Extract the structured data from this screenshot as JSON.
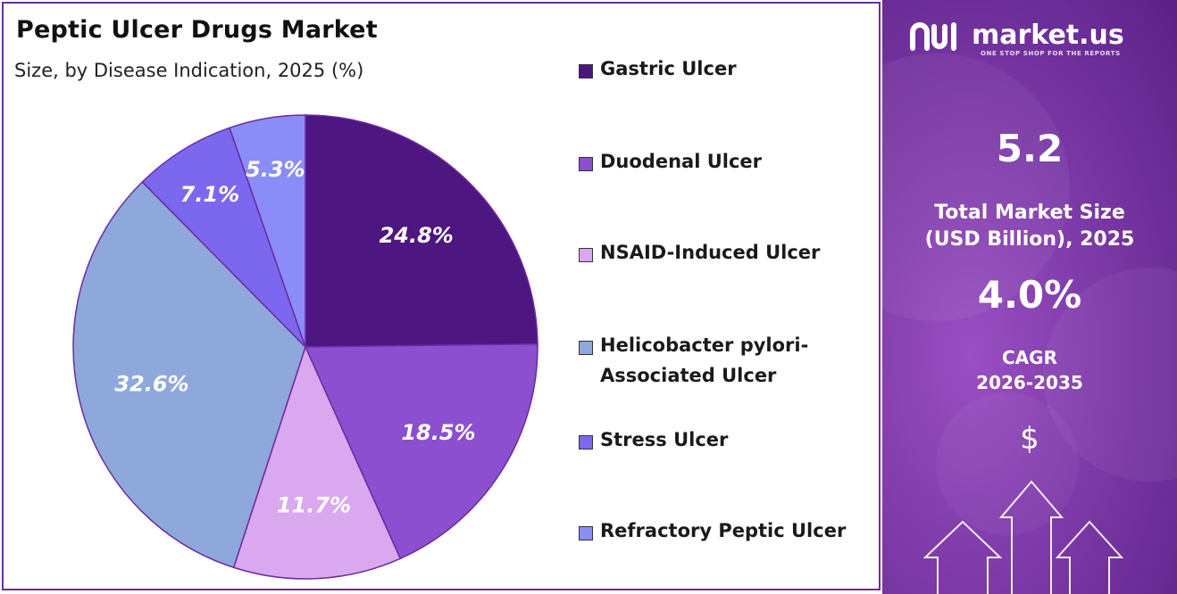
{
  "header": {
    "title": "Peptic Ulcer Drugs Market",
    "subtitle": "Size, by Disease Indication, 2025 (%)"
  },
  "chart_data": {
    "type": "pie",
    "title": "Peptic Ulcer Drugs Market",
    "subtitle": "Size, by Disease Indication, 2025 (%)",
    "slices": [
      {
        "label": "Gastric Ulcer",
        "value": 24.8,
        "display": "24.8%",
        "color": "#4e1680"
      },
      {
        "label": "Duodenal Ulcer",
        "value": 18.5,
        "display": "18.5%",
        "color": "#8c4fd0"
      },
      {
        "label": "NSAID-Induced Ulcer",
        "value": 11.7,
        "display": "11.7%",
        "color": "#d9a8ef"
      },
      {
        "label": "Helicobacter pylori-Associated Ulcer",
        "value": 32.6,
        "display": "32.6%",
        "color": "#8fa8dc"
      },
      {
        "label": "Stress Ulcer",
        "value": 7.1,
        "display": "7.1%",
        "color": "#7b68ee"
      },
      {
        "label": "Refractory Peptic Ulcer",
        "value": 5.3,
        "display": "5.3%",
        "color": "#8a8cf8"
      }
    ],
    "legend_position": "right"
  },
  "legend": [
    {
      "line1": "Gastric Ulcer",
      "line2": ""
    },
    {
      "line1": "Duodenal Ulcer",
      "line2": ""
    },
    {
      "line1": "NSAID-Induced Ulcer",
      "line2": ""
    },
    {
      "line1": "Helicobacter pylori-",
      "line2": "Associated Ulcer"
    },
    {
      "line1": "Stress Ulcer",
      "line2": ""
    },
    {
      "line1": "Refractory Peptic Ulcer",
      "line2": ""
    }
  ],
  "sidebar": {
    "brand": "market.us",
    "tagline": "ONE STOP SHOP FOR THE REPORTS",
    "market_size_value": "5.2",
    "market_size_label_1": "Total Market Size",
    "market_size_label_2": "(USD Billion), 2025",
    "cagr_value": "4.0%",
    "cagr_label_1": "CAGR",
    "cagr_label_2": "2026-2035",
    "dollar_symbol": "$",
    "icons": [
      "market-us-logo-icon",
      "arrow-up-icon"
    ]
  }
}
